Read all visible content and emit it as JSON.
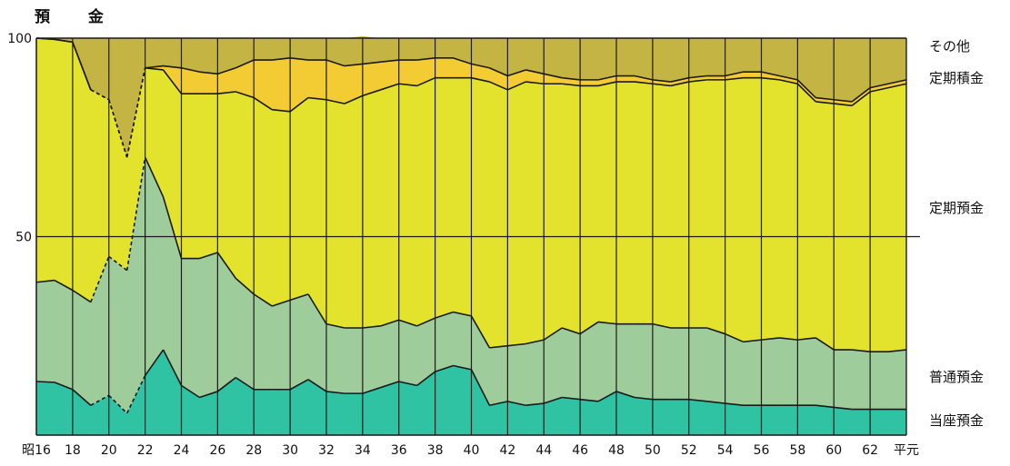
{
  "chart_data": {
    "type": "area",
    "stacked": true,
    "title": "預 金",
    "xlabel": "",
    "ylabel": "",
    "ylim": [
      0,
      100
    ],
    "yticks": [
      100,
      50
    ],
    "grid": true,
    "x_tick_labels": [
      "昭16",
      "18",
      "20",
      "22",
      "24",
      "26",
      "28",
      "30",
      "32",
      "34",
      "36",
      "38",
      "40",
      "42",
      "44",
      "46",
      "48",
      "50",
      "52",
      "54",
      "56",
      "58",
      "60",
      "62",
      "平元"
    ],
    "x": [
      "昭16",
      "17",
      "18",
      "19",
      "20",
      "21",
      "22",
      "23",
      "24",
      "25",
      "26",
      "27",
      "28",
      "29",
      "30",
      "31",
      "32",
      "33",
      "34",
      "35",
      "36",
      "37",
      "38",
      "39",
      "40",
      "41",
      "42",
      "43",
      "44",
      "45",
      "46",
      "47",
      "48",
      "49",
      "50",
      "51",
      "52",
      "53",
      "54",
      "55",
      "56",
      "57",
      "58",
      "59",
      "60",
      "61",
      "62",
      "63",
      "平元"
    ],
    "estimated_years": [
      "20",
      "21",
      "22"
    ],
    "series": [
      {
        "name": "当座預金",
        "color": "#2fc2a3",
        "values": [
          13.5,
          13.3,
          11.5,
          7.5,
          10,
          5.5,
          15,
          21.5,
          12.5,
          9.5,
          11,
          14.5,
          11.5,
          11.5,
          11.5,
          14,
          11,
          10.5,
          10.5,
          12,
          13.5,
          12.5,
          16,
          17.5,
          16.5,
          7.5,
          8.5,
          7.5,
          8,
          9.5,
          9,
          8.5,
          11,
          9.5,
          9,
          9,
          9,
          8.5,
          8,
          7.5,
          7.5,
          7.5,
          7.5,
          7.5,
          7,
          6.5,
          6.5,
          6.5,
          6.5
        ]
      },
      {
        "name": "普通預金",
        "color": "#9fcc9b",
        "values": [
          25,
          25.7,
          25,
          26,
          35,
          36,
          55,
          38.5,
          32,
          35,
          35,
          25,
          24,
          21,
          22.5,
          21.5,
          17,
          16.5,
          16.5,
          15.5,
          15.5,
          15,
          13.5,
          13.5,
          13.5,
          14.5,
          14,
          15.5,
          16,
          17.5,
          16.5,
          20,
          17,
          18.5,
          19,
          18,
          18,
          18.5,
          17.5,
          16,
          16.5,
          17,
          16.5,
          17,
          14.5,
          15,
          14.5,
          14.5,
          15
        ]
      },
      {
        "name": "定期預金",
        "color": "#e3e32d",
        "values": [
          61.5,
          60.7,
          62.5,
          53.5,
          39.5,
          28.5,
          22.5,
          32,
          41.5,
          41.5,
          40,
          47,
          49.5,
          49.5,
          47.5,
          49.5,
          56.5,
          56.5,
          58.5,
          59.5,
          59.5,
          60.5,
          60.5,
          59,
          60,
          67,
          64.5,
          66,
          64.5,
          61.5,
          62.5,
          59.5,
          61,
          61,
          60.5,
          61,
          62,
          62.5,
          64,
          66.5,
          66,
          65,
          64.5,
          59.5,
          62,
          61.5,
          65.5,
          66.5,
          67
        ]
      },
      {
        "name": "定期積金",
        "color": "#f3cc34",
        "values": [
          0,
          0,
          0,
          0,
          0,
          0,
          0,
          1,
          6.5,
          5.5,
          5,
          6,
          9.5,
          12.5,
          13.5,
          9.5,
          10,
          9.5,
          8,
          7,
          6,
          6.5,
          5,
          5,
          3.5,
          3.5,
          3.5,
          3,
          2.5,
          1.5,
          1.5,
          1.5,
          1.5,
          1.5,
          1,
          1,
          1,
          1,
          1,
          1.5,
          1.5,
          1,
          1,
          1,
          1,
          1,
          1,
          1,
          1
        ]
      },
      {
        "name": "その他",
        "color": "#c4b443",
        "values": [
          0,
          0.3,
          1,
          13,
          15.5,
          30,
          7.5,
          7,
          7.5,
          8.5,
          9,
          7.5,
          5.5,
          5.5,
          5,
          5.5,
          5.5,
          7,
          7,
          6,
          5.5,
          5.5,
          5,
          5,
          6.5,
          7.5,
          9.5,
          8,
          9,
          10,
          10.5,
          10.5,
          9.5,
          9.5,
          10.5,
          11,
          10,
          9.5,
          9.5,
          8.5,
          8.5,
          9.5,
          10.5,
          15,
          15.5,
          16,
          12.5,
          11.5,
          10.5
        ]
      }
    ]
  }
}
